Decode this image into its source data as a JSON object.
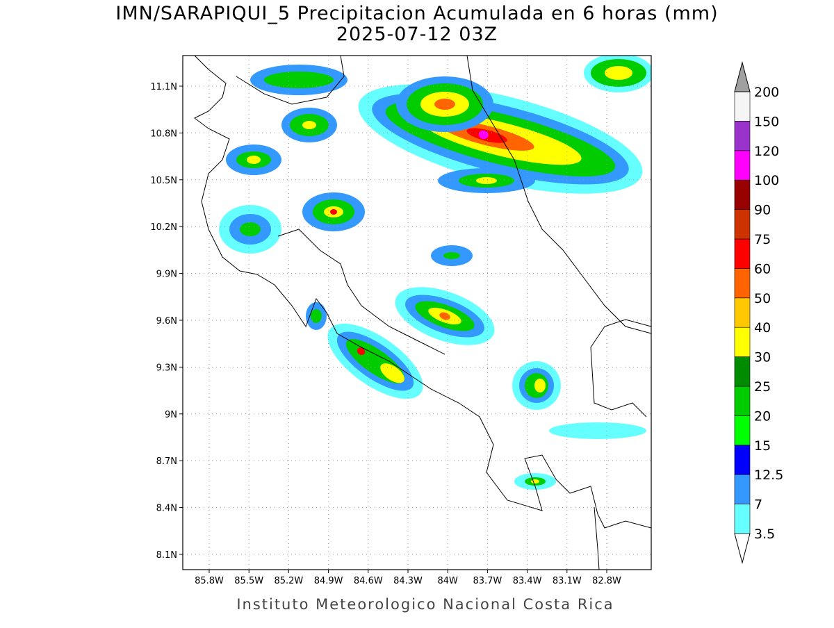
{
  "title": "IMN/SARAPIQUI_5 Precipitacion Acumulada en 6 horas (mm)",
  "subtitle": "2025-07-12 03Z",
  "lat_labels": [
    "11.1N",
    "10.8N",
    "10.5N",
    "10.2N",
    "9.9N",
    "9.6N",
    "9.3N",
    "9N",
    "8.7N",
    "8.4N",
    "8.1N"
  ],
  "lon_labels": [
    "85.8W",
    "85.5W",
    "85.2W",
    "84.9W",
    "84.6W",
    "84.3W",
    "84W",
    "83.7W",
    "83.4W",
    "83.1W",
    "82.8W"
  ],
  "colorbar": {
    "levels": [
      "3.5",
      "7",
      "12.5",
      "15",
      "20",
      "25",
      "30",
      "40",
      "50",
      "60",
      "75",
      "90",
      "100",
      "120",
      "150",
      "200"
    ],
    "colors": [
      "#ffffff",
      "#66ffff",
      "#3399ff",
      "#0000ff",
      "#00ff00",
      "#00cc00",
      "#008c00",
      "#ffff00",
      "#ffc800",
      "#ff6400",
      "#ff0000",
      "#cc3300",
      "#990000",
      "#ff00ff",
      "#9933cc",
      "#f5f5f5",
      "#a0a0a0"
    ]
  },
  "footer": "Instituto Meteorologico Nacional Costa Rica"
}
